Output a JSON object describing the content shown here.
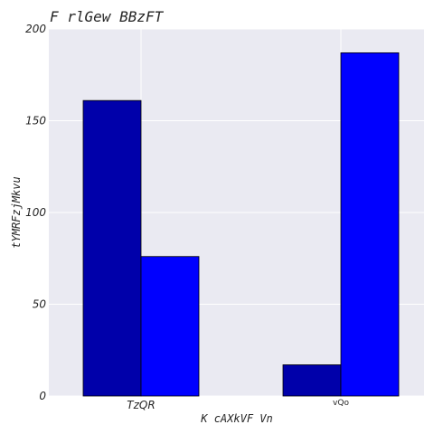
{
  "chart_data": {
    "type": "bar",
    "title": "F rlGew BBzFT",
    "xlabel": "K cAXkVF Vn",
    "ylabel": "tYMRFzjMkvu",
    "categories": [
      "TzQR",
      "vQo"
    ],
    "series": [
      {
        "values": [
          161,
          17
        ],
        "color": "#0000aa"
      },
      {
        "values": [
          76,
          187
        ],
        "color": "#0000ff"
      }
    ],
    "ylim": [
      0,
      200
    ],
    "yticks": [
      0,
      50,
      100,
      150,
      200
    ],
    "grid": true,
    "legend": false,
    "background": "#eaeaf2"
  }
}
